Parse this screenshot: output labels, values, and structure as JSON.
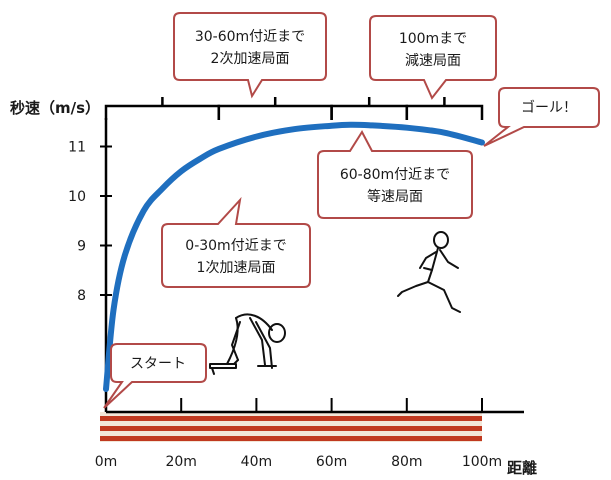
{
  "chart_data": {
    "type": "line",
    "title": "",
    "ylabel": "秒速（m/s）",
    "xlabel": "距離",
    "x_ticks": [
      "0m",
      "20m",
      "40m",
      "60m",
      "80m",
      "100m"
    ],
    "y_ticks": [
      "8",
      "9",
      "10",
      "11"
    ],
    "series": [
      {
        "x": [
          0,
          2,
          5,
          10,
          15,
          20,
          25,
          30,
          40,
          50,
          60,
          65,
          70,
          80,
          90,
          100
        ],
        "y": [
          6.1,
          7.7,
          8.8,
          9.7,
          10.15,
          10.5,
          10.75,
          10.95,
          11.2,
          11.35,
          11.42,
          11.44,
          11.43,
          11.38,
          11.28,
          11.08
        ]
      }
    ],
    "phase_brackets": [
      {
        "from": 0,
        "to": 30
      },
      {
        "from": 30,
        "to": 60
      },
      {
        "from": 60,
        "to": 80
      },
      {
        "from": 80,
        "to": 100
      }
    ],
    "annotations": {
      "start": "スタート",
      "phase1": [
        "0-30m付近まで",
        "1次加速局面"
      ],
      "phase2": [
        "30-60m付近まで",
        "2次加速局面"
      ],
      "phase3": [
        "60-80m付近まで",
        "等速局面"
      ],
      "phase4": [
        "100mまで",
        "減速局面"
      ],
      "goal": "ゴール！"
    },
    "colors": {
      "curve": "#1f6fbf",
      "bubble_border": "#b24a48",
      "track_stripe": "#c0391f",
      "track_fill": "#f2e6d8"
    }
  }
}
